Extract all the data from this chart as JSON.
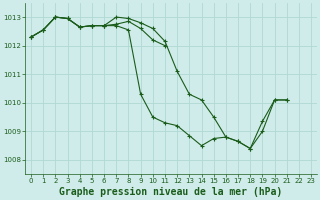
{
  "background_color": "#d0ecea",
  "grid_color": "#b0d8d4",
  "line_color": "#1a5c1a",
  "xlabel": "Graphe pression niveau de la mer (hPa)",
  "xlabel_fontsize": 7,
  "ylim": [
    1007.5,
    1013.5
  ],
  "xlim": [
    -0.5,
    23.5
  ],
  "yticks": [
    1008,
    1009,
    1010,
    1011,
    1012,
    1013
  ],
  "xticks": [
    0,
    1,
    2,
    3,
    4,
    5,
    6,
    7,
    8,
    9,
    10,
    11,
    12,
    13,
    14,
    15,
    16,
    17,
    18,
    19,
    20,
    21,
    22,
    23
  ],
  "s1_x": [
    0,
    1,
    2,
    3,
    4,
    5,
    6,
    7,
    8,
    9,
    10,
    11,
    12,
    13,
    14,
    15,
    16,
    17,
    18,
    19,
    20,
    21
  ],
  "s1_y": [
    1012.3,
    1012.55,
    1013.0,
    1012.95,
    1012.65,
    1012.7,
    1012.7,
    1013.0,
    1012.95,
    1012.8,
    1012.6,
    1012.15,
    1011.1,
    1010.3,
    1010.1,
    1009.5,
    1008.8,
    1008.65,
    1008.4,
    1009.0,
    1010.1,
    1010.1
  ],
  "s2_x": [
    0,
    1,
    2,
    3,
    4,
    5,
    6,
    7,
    8,
    9,
    10,
    11
  ],
  "s2_y": [
    1012.3,
    1012.55,
    1013.0,
    1012.95,
    1012.65,
    1012.7,
    1012.7,
    1012.75,
    1012.85,
    1012.6,
    1012.2,
    1012.0
  ],
  "s3_x": [
    0,
    1,
    2,
    3,
    4,
    5,
    6,
    7,
    8,
    9,
    10,
    11,
    12,
    13,
    14,
    15,
    16,
    17,
    18,
    19,
    20,
    21
  ],
  "s3_y": [
    1012.3,
    1012.55,
    1013.0,
    1012.95,
    1012.65,
    1012.7,
    1012.7,
    1012.7,
    1012.55,
    1010.3,
    1009.5,
    1009.3,
    1009.2,
    1008.85,
    1008.5,
    1008.75,
    1008.8,
    1008.65,
    1008.4,
    1009.35,
    1010.1,
    1010.1
  ]
}
